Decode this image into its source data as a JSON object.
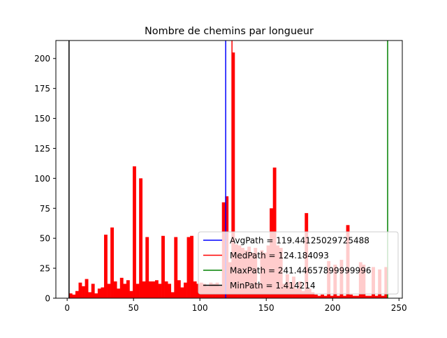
{
  "chart_data": {
    "type": "histogram",
    "title": "Nombre de chemins par longueur",
    "xlabel": "",
    "ylabel": "",
    "xlim": [
      -8.5,
      252.5
    ],
    "ylim": [
      0,
      215
    ],
    "xticks": [
      0,
      50,
      100,
      150,
      200,
      250
    ],
    "yticks": [
      0,
      25,
      50,
      75,
      100,
      125,
      150,
      175,
      200
    ],
    "bar_color": "#ff0000",
    "bin_width": 2.4,
    "bins": [
      {
        "x": 2.6,
        "count": 4
      },
      {
        "x": 5.0,
        "count": 3
      },
      {
        "x": 7.4,
        "count": 6
      },
      {
        "x": 9.8,
        "count": 13
      },
      {
        "x": 12.2,
        "count": 10
      },
      {
        "x": 14.6,
        "count": 16
      },
      {
        "x": 17.0,
        "count": 5
      },
      {
        "x": 19.4,
        "count": 12
      },
      {
        "x": 21.8,
        "count": 4
      },
      {
        "x": 24.2,
        "count": 8
      },
      {
        "x": 26.6,
        "count": 9
      },
      {
        "x": 29.0,
        "count": 53
      },
      {
        "x": 31.4,
        "count": 12
      },
      {
        "x": 33.8,
        "count": 59
      },
      {
        "x": 36.2,
        "count": 14
      },
      {
        "x": 38.6,
        "count": 8
      },
      {
        "x": 41.0,
        "count": 17
      },
      {
        "x": 43.4,
        "count": 12
      },
      {
        "x": 45.8,
        "count": 15
      },
      {
        "x": 48.2,
        "count": 6
      },
      {
        "x": 50.6,
        "count": 110
      },
      {
        "x": 53.0,
        "count": 12
      },
      {
        "x": 55.4,
        "count": 100
      },
      {
        "x": 57.8,
        "count": 14
      },
      {
        "x": 60.2,
        "count": 51
      },
      {
        "x": 62.6,
        "count": 14
      },
      {
        "x": 65.0,
        "count": 14
      },
      {
        "x": 67.4,
        "count": 15
      },
      {
        "x": 69.8,
        "count": 12
      },
      {
        "x": 72.2,
        "count": 52
      },
      {
        "x": 74.6,
        "count": 14
      },
      {
        "x": 77.0,
        "count": 12
      },
      {
        "x": 79.4,
        "count": 5
      },
      {
        "x": 81.8,
        "count": 51
      },
      {
        "x": 84.2,
        "count": 15
      },
      {
        "x": 86.6,
        "count": 9
      },
      {
        "x": 89.0,
        "count": 13
      },
      {
        "x": 91.4,
        "count": 51
      },
      {
        "x": 93.8,
        "count": 52
      },
      {
        "x": 96.2,
        "count": 14
      },
      {
        "x": 98.6,
        "count": 12
      },
      {
        "x": 101.0,
        "count": 13
      },
      {
        "x": 103.4,
        "count": 12
      },
      {
        "x": 105.8,
        "count": 10
      },
      {
        "x": 108.2,
        "count": 13
      },
      {
        "x": 110.6,
        "count": 12
      },
      {
        "x": 113.0,
        "count": 13
      },
      {
        "x": 115.4,
        "count": 10
      },
      {
        "x": 117.8,
        "count": 80
      },
      {
        "x": 120.2,
        "count": 85
      },
      {
        "x": 122.6,
        "count": 30
      },
      {
        "x": 125.0,
        "count": 205
      },
      {
        "x": 127.4,
        "count": 45
      },
      {
        "x": 129.8,
        "count": 44
      },
      {
        "x": 132.2,
        "count": 42
      },
      {
        "x": 134.6,
        "count": 40
      },
      {
        "x": 137.0,
        "count": 43
      },
      {
        "x": 139.4,
        "count": 38
      },
      {
        "x": 141.8,
        "count": 42
      },
      {
        "x": 144.2,
        "count": 12
      },
      {
        "x": 146.6,
        "count": 40
      },
      {
        "x": 149.0,
        "count": 38
      },
      {
        "x": 151.4,
        "count": 44
      },
      {
        "x": 153.8,
        "count": 75
      },
      {
        "x": 156.2,
        "count": 109
      },
      {
        "x": 158.6,
        "count": 44
      },
      {
        "x": 161.0,
        "count": 42
      },
      {
        "x": 163.4,
        "count": 12
      },
      {
        "x": 165.8,
        "count": 20
      },
      {
        "x": 168.2,
        "count": 13
      },
      {
        "x": 170.6,
        "count": 18
      },
      {
        "x": 173.0,
        "count": 8
      },
      {
        "x": 175.4,
        "count": 14
      },
      {
        "x": 177.8,
        "count": 6
      },
      {
        "x": 180.2,
        "count": 71
      },
      {
        "x": 182.6,
        "count": 8
      },
      {
        "x": 185.0,
        "count": 5
      },
      {
        "x": 187.4,
        "count": 3
      },
      {
        "x": 189.8,
        "count": 2
      },
      {
        "x": 192.2,
        "count": 3
      },
      {
        "x": 194.6,
        "count": 2
      },
      {
        "x": 197.0,
        "count": 31
      },
      {
        "x": 199.4,
        "count": 2
      },
      {
        "x": 201.8,
        "count": 28
      },
      {
        "x": 204.2,
        "count": 2
      },
      {
        "x": 206.6,
        "count": 32
      },
      {
        "x": 209.0,
        "count": 2
      },
      {
        "x": 211.4,
        "count": 61
      },
      {
        "x": 213.8,
        "count": 3
      },
      {
        "x": 216.2,
        "count": 2
      },
      {
        "x": 218.6,
        "count": 2
      },
      {
        "x": 221.0,
        "count": 30
      },
      {
        "x": 223.4,
        "count": 28
      },
      {
        "x": 225.8,
        "count": 2
      },
      {
        "x": 228.2,
        "count": 2
      },
      {
        "x": 230.6,
        "count": 26
      },
      {
        "x": 233.0,
        "count": 2
      },
      {
        "x": 235.4,
        "count": 24
      },
      {
        "x": 237.8,
        "count": 2
      },
      {
        "x": 240.2,
        "count": 26
      }
    ],
    "vlines": [
      {
        "name": "AvgPath",
        "x": 119.44125029725488,
        "color": "#0000ff",
        "label": "AvgPath = 119.44125029725488"
      },
      {
        "name": "MedPath",
        "x": 124.184093,
        "color": "#ff0000",
        "label": "MedPath = 124.184093"
      },
      {
        "name": "MaxPath",
        "x": 241.44657899999996,
        "color": "#008000",
        "label": "MaxPath = 241.44657899999996"
      },
      {
        "name": "MinPath",
        "x": 1.414214,
        "color": "#000000",
        "label": "MinPath = 1.414214"
      }
    ],
    "legend_position": "lower-right",
    "grid": false
  }
}
